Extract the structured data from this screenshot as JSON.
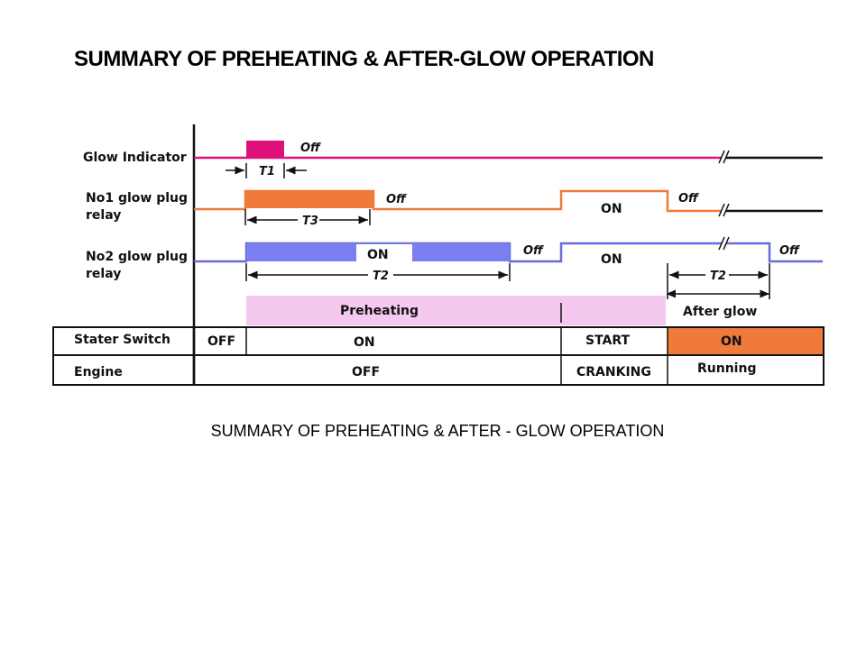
{
  "title": "SUMMARY OF PREHEATING & AFTER-GLOW OPERATION",
  "caption": "SUMMARY OF PREHEATING & AFTER - GLOW OPERATION",
  "signals": {
    "glow_indicator": {
      "label": "Glow Indicator",
      "off": "Off",
      "timer": "T1",
      "color": "#e0107a"
    },
    "no1_relay": {
      "label_line1": "No1 glow plug",
      "label_line2": "relay",
      "off": "Off",
      "on": "ON",
      "off_after": "Off",
      "timer": "T3",
      "color": "#f07a3a"
    },
    "no2_relay": {
      "label_line1": "No2 glow plug",
      "label_line2": "relay",
      "on": "ON",
      "off": "Off",
      "on_crank": "ON",
      "off_end": "Off",
      "timer_pre": "T2",
      "timer_post": "T2",
      "color": "#7b7ef0",
      "line_color": "#6a6ad8"
    }
  },
  "phases": {
    "preheating": "Preheating",
    "after_glow": "After glow",
    "preheat_color": "#f5c8f0"
  },
  "table": {
    "starter_switch": {
      "label": "Stater Switch",
      "values": [
        "OFF",
        "ON",
        "START",
        "ON"
      ],
      "highlight_color": "#f07a3a"
    },
    "engine": {
      "label": "Engine",
      "values": [
        "OFF",
        "CRANKING",
        "Running"
      ]
    }
  }
}
